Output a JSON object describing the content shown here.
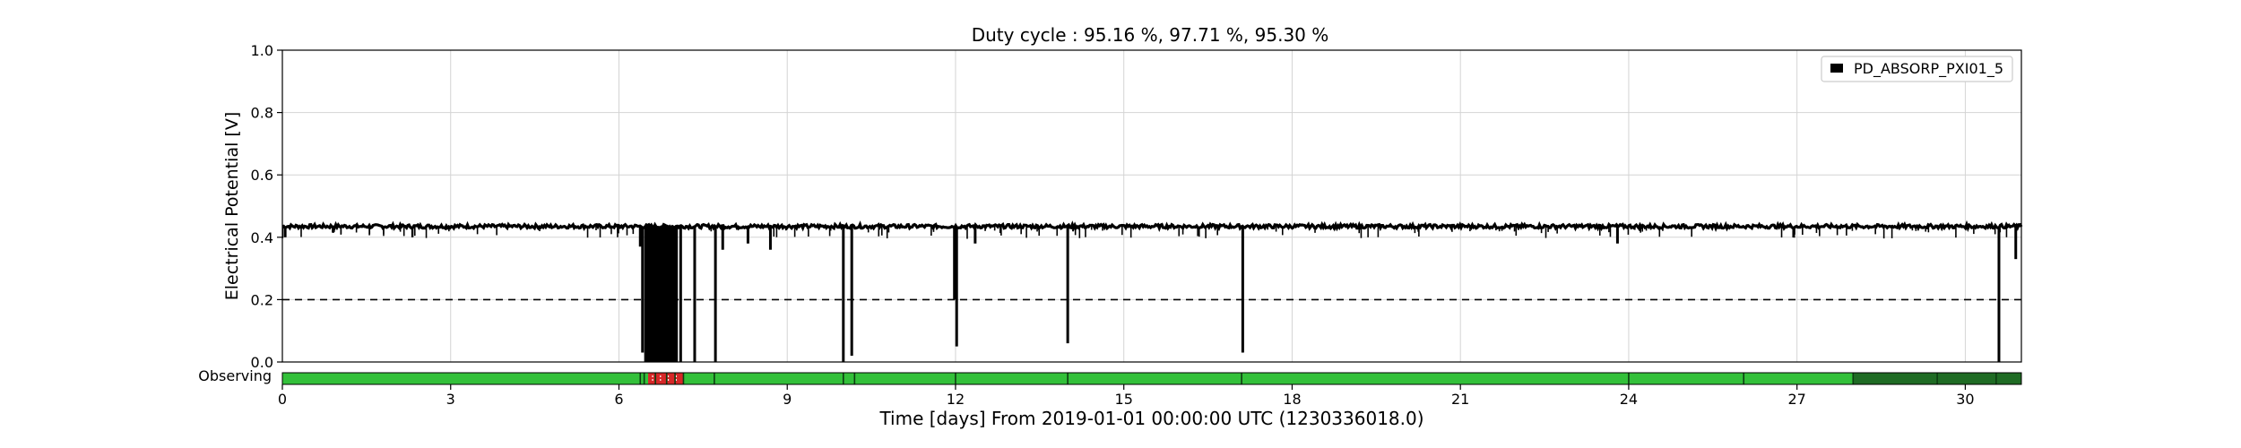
{
  "chart_data": {
    "type": "line",
    "title": "Duty cycle : 95.16 %, 97.71 %, 95.30 %",
    "xlabel": "Time [days] From 2019-01-01 00:00:00 UTC (1230336018.0)",
    "ylabel": "Electrical Potential [V]",
    "xlim": [
      0,
      31
    ],
    "ylim": [
      0,
      1.0
    ],
    "x_ticks": [
      0,
      3,
      6,
      9,
      12,
      15,
      18,
      21,
      24,
      27,
      30
    ],
    "y_ticks": [
      "0.0",
      "0.2",
      "0.4",
      "0.6",
      "0.8",
      "1.0"
    ],
    "grid": true,
    "legend_position": "top-right",
    "threshold": 0.2,
    "series": [
      {
        "name": "PD_ABSORP_PXI01_5",
        "color": "#000000",
        "baseline": 0.435,
        "dense_dropout_range": [
          6.45,
          7.05
        ],
        "dips": [
          {
            "x": 0.05,
            "y": 0.4
          },
          {
            "x": 6.38,
            "y": 0.37
          },
          {
            "x": 6.42,
            "y": 0.03
          },
          {
            "x": 6.5,
            "y": 0.0
          },
          {
            "x": 6.6,
            "y": 0.0
          },
          {
            "x": 6.75,
            "y": 0.0
          },
          {
            "x": 6.9,
            "y": 0.0
          },
          {
            "x": 7.0,
            "y": 0.0
          },
          {
            "x": 7.1,
            "y": 0.0
          },
          {
            "x": 7.35,
            "y": 0.0
          },
          {
            "x": 7.72,
            "y": 0.0
          },
          {
            "x": 7.85,
            "y": 0.36
          },
          {
            "x": 8.3,
            "y": 0.38
          },
          {
            "x": 8.7,
            "y": 0.36
          },
          {
            "x": 10.0,
            "y": 0.0
          },
          {
            "x": 10.15,
            "y": 0.02
          },
          {
            "x": 11.98,
            "y": 0.2
          },
          {
            "x": 12.02,
            "y": 0.05
          },
          {
            "x": 12.35,
            "y": 0.38
          },
          {
            "x": 14.0,
            "y": 0.06
          },
          {
            "x": 17.12,
            "y": 0.03
          },
          {
            "x": 23.8,
            "y": 0.38
          },
          {
            "x": 30.6,
            "y": 0.0
          },
          {
            "x": 30.9,
            "y": 0.33
          }
        ]
      }
    ],
    "observing": {
      "label": "Observing",
      "colors": {
        "on": "#33c03a",
        "off": "#d62728",
        "alt": "#1f6b24"
      },
      "segments": [
        {
          "start": 0,
          "end": 6.52,
          "state": "on"
        },
        {
          "start": 6.52,
          "end": 7.15,
          "state": "off"
        },
        {
          "start": 7.15,
          "end": 28.0,
          "state": "on"
        },
        {
          "start": 28.0,
          "end": 31.0,
          "state": "alt"
        }
      ],
      "markers": [
        6.38,
        6.45,
        6.65,
        6.85,
        7.0,
        7.15,
        7.7,
        10.0,
        10.2,
        12.0,
        14.0,
        17.1,
        24.0,
        26.05,
        28.0,
        29.5,
        30.55
      ]
    }
  }
}
